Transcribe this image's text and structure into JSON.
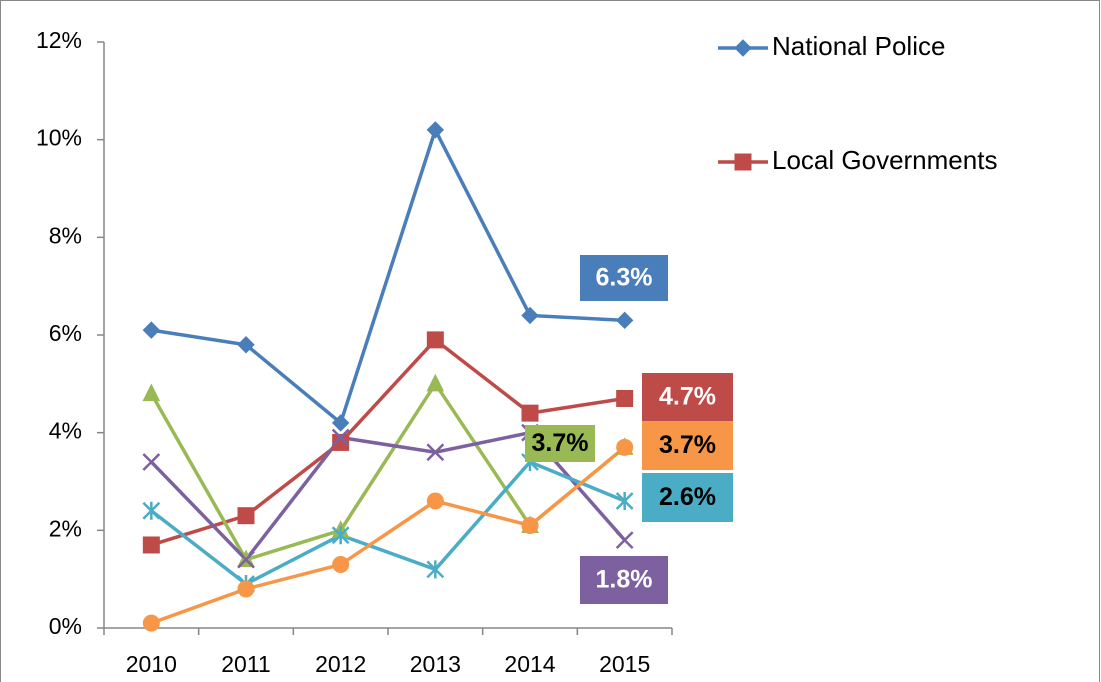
{
  "chart_data": {
    "type": "line",
    "categories": [
      "2010",
      "2011",
      "2012",
      "2013",
      "2014",
      "2015"
    ],
    "ylim": [
      0,
      12
    ],
    "yticks": [
      {
        "value": 0,
        "label": "0%"
      },
      {
        "value": 2,
        "label": "2%"
      },
      {
        "value": 4,
        "label": "4%"
      },
      {
        "value": 6,
        "label": "6%"
      },
      {
        "value": 8,
        "label": "8%"
      },
      {
        "value": 10,
        "label": "10%"
      },
      {
        "value": 12,
        "label": "12%"
      }
    ],
    "legend": "top-right",
    "series": [
      {
        "name": "National Police",
        "color": "#4a7ebb",
        "marker": "diamond",
        "values": [
          6.1,
          5.8,
          4.2,
          10.2,
          6.4,
          6.3
        ],
        "value_labels": [
          null,
          null,
          null,
          null,
          null,
          "6.3%"
        ]
      },
      {
        "name": "Local Governments",
        "color": "#be4b48",
        "marker": "square",
        "values": [
          1.7,
          2.3,
          3.8,
          5.9,
          4.4,
          4.7
        ],
        "value_labels": [
          null,
          null,
          null,
          null,
          null,
          "4.7%"
        ]
      },
      {
        "color": "#98b954",
        "marker": "triangle",
        "values": [
          4.8,
          1.4,
          2.0,
          5.0,
          2.1,
          3.7
        ],
        "value_labels": [
          null,
          null,
          null,
          null,
          null,
          "3.7%"
        ]
      },
      {
        "color": "#7d60a0",
        "marker": "x",
        "values": [
          3.4,
          1.4,
          3.9,
          3.6,
          4.0,
          1.8
        ],
        "value_labels": [
          null,
          null,
          null,
          null,
          null,
          "1.8%"
        ]
      },
      {
        "color": "#4bacc6",
        "marker": "star",
        "values": [
          2.4,
          0.9,
          1.9,
          1.2,
          3.4,
          2.6
        ],
        "value_labels": [
          null,
          null,
          null,
          null,
          null,
          "2.6%"
        ]
      },
      {
        "color": "#f79646",
        "marker": "circle",
        "values": [
          0.1,
          0.8,
          1.3,
          2.6,
          2.1,
          3.7
        ],
        "value_labels": [
          null,
          null,
          null,
          null,
          null,
          "3.7%"
        ]
      }
    ]
  }
}
